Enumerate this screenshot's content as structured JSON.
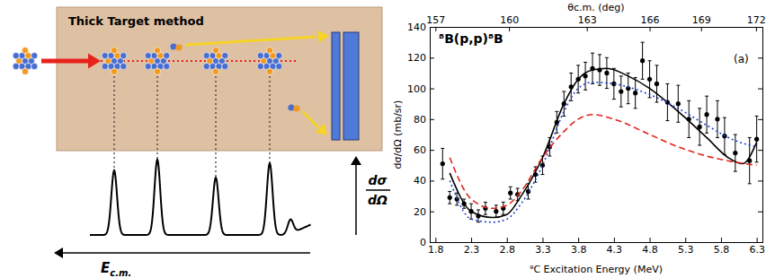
{
  "diagram": {
    "title": "Thick Target method",
    "x_label": {
      "symbol": "E",
      "subscript": "c.m."
    },
    "y_label": {
      "numerator": "dσ",
      "denominator": "dΩ"
    }
  },
  "chart_data": {
    "type": "scatter",
    "title": "⁸B(p,p)⁸B",
    "annotation": "(a)",
    "x_label": "⁹C Excitation Energy (MeV)",
    "y_label": "dσ/dΩ (mb/sr)",
    "xlim": [
      1.72,
      6.38
    ],
    "xticks": [
      1.8,
      2.3,
      2.8,
      3.3,
      3.8,
      4.3,
      4.8,
      5.3,
      5.8,
      6.3
    ],
    "ylim": [
      0,
      140
    ],
    "yticks": [
      0,
      20,
      40,
      60,
      80,
      100,
      120,
      140
    ],
    "top_axis": {
      "label": "θc.m. (deg)",
      "ticks": [
        {
          "value": 157,
          "x": 1.8
        },
        {
          "value": 160,
          "x": 2.83
        },
        {
          "value": 163,
          "x": 3.92
        },
        {
          "value": 166,
          "x": 4.8
        },
        {
          "value": 169,
          "x": 5.52
        },
        {
          "value": 172,
          "x": 6.29
        }
      ]
    },
    "series": [
      {
        "type": "scatter",
        "color": "#000000",
        "marker": "circle",
        "x": [
          1.9,
          2.0,
          2.1,
          2.2,
          2.3,
          2.4,
          2.5,
          2.65,
          2.75,
          2.85,
          2.95,
          3.1,
          3.2,
          3.3,
          3.4,
          3.5,
          3.6,
          3.7,
          3.8,
          3.9,
          4.0,
          4.1,
          4.2,
          4.3,
          4.4,
          4.5,
          4.6,
          4.7,
          4.8,
          4.9,
          5.05,
          5.2,
          5.35,
          5.5,
          5.6,
          5.75,
          5.85,
          6.0,
          6.2,
          6.3
        ],
        "values": [
          51,
          29,
          28,
          25,
          20,
          17,
          22,
          20,
          22,
          32,
          31,
          33,
          44,
          50,
          62,
          78,
          90,
          101,
          106,
          108,
          113,
          112,
          110,
          103,
          98,
          100,
          97,
          118,
          106,
          103,
          91,
          90,
          80,
          75,
          83,
          80,
          69,
          58,
          53,
          67
        ],
        "errors": [
          10,
          4,
          4,
          3,
          5,
          4,
          4,
          4,
          4,
          4,
          4,
          5,
          5,
          6,
          6,
          7,
          8,
          9,
          9,
          9,
          10,
          10,
          10,
          10,
          10,
          10,
          10,
          12,
          12,
          12,
          12,
          12,
          12,
          12,
          12,
          12,
          12,
          12,
          15,
          15
        ]
      },
      {
        "type": "line",
        "color": "#000000",
        "line_style": "solid",
        "x": [
          2.0,
          2.3,
          2.6,
          2.8,
          3.0,
          3.3,
          3.6,
          3.8,
          4.0,
          4.2,
          4.5,
          4.8,
          5.2,
          5.6,
          5.9,
          6.1,
          6.3
        ],
        "values": [
          45,
          20,
          16,
          18,
          30,
          55,
          90,
          106,
          112,
          113,
          108,
          100,
          85,
          68,
          55,
          51,
          65
        ]
      },
      {
        "type": "line",
        "color": "#1f3fd6",
        "line_style": "dotted",
        "x": [
          2.0,
          2.3,
          2.6,
          2.8,
          3.0,
          3.3,
          3.6,
          3.8,
          4.0,
          4.3,
          4.8,
          5.2,
          5.6,
          6.0,
          6.3
        ],
        "values": [
          40,
          15,
          13,
          15,
          25,
          50,
          85,
          100,
          104,
          103,
          96,
          87,
          76,
          66,
          62
        ]
      },
      {
        "type": "line",
        "color": "#e0241c",
        "line_style": "dashed",
        "x": [
          2.0,
          2.3,
          2.6,
          2.8,
          3.0,
          3.3,
          3.6,
          3.8,
          4.0,
          4.3,
          4.8,
          5.2,
          5.6,
          6.0,
          6.3
        ],
        "values": [
          55,
          28,
          22,
          24,
          33,
          55,
          72,
          80,
          83,
          80,
          70,
          62,
          56,
          52,
          50
        ]
      }
    ]
  }
}
